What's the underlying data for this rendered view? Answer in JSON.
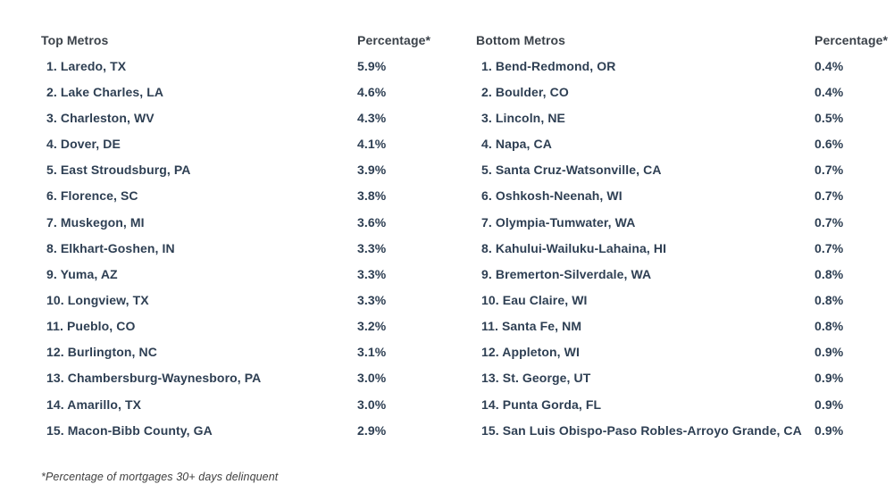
{
  "chart_data": [
    {
      "type": "table",
      "name_header": "Top Metros",
      "value_header": "Percentage*",
      "rows": [
        {
          "rank": "1.",
          "metro": "Laredo, TX",
          "pct": 5.9,
          "display": "5.9%"
        },
        {
          "rank": "2.",
          "metro": "Lake Charles, LA",
          "pct": 4.6,
          "display": "4.6%"
        },
        {
          "rank": "3.",
          "metro": "Charleston, WV",
          "pct": 4.3,
          "display": "4.3%"
        },
        {
          "rank": "4.",
          "metro": "Dover, DE",
          "pct": 4.1,
          "display": "4.1%"
        },
        {
          "rank": "5.",
          "metro": "East Stroudsburg, PA",
          "pct": 3.9,
          "display": "3.9%"
        },
        {
          "rank": "6.",
          "metro": "Florence, SC",
          "pct": 3.8,
          "display": "3.8%"
        },
        {
          "rank": "7.",
          "metro": "Muskegon, MI",
          "pct": 3.6,
          "display": "3.6%"
        },
        {
          "rank": "8.",
          "metro": "Elkhart-Goshen, IN",
          "pct": 3.3,
          "display": "3.3%"
        },
        {
          "rank": "9.",
          "metro": "Yuma, AZ",
          "pct": 3.3,
          "display": "3.3%"
        },
        {
          "rank": "10.",
          "metro": "Longview, TX",
          "pct": 3.3,
          "display": "3.3%"
        },
        {
          "rank": "11.",
          "metro": "Pueblo, CO",
          "pct": 3.2,
          "display": "3.2%"
        },
        {
          "rank": "12.",
          "metro": "Burlington, NC",
          "pct": 3.1,
          "display": "3.1%"
        },
        {
          "rank": "13.",
          "metro": "Chambersburg-Waynesboro, PA",
          "pct": 3.0,
          "display": "3.0%"
        },
        {
          "rank": "14.",
          "metro": "Amarillo, TX",
          "pct": 3.0,
          "display": "3.0%"
        },
        {
          "rank": "15.",
          "metro": "Macon-Bibb County, GA",
          "pct": 2.9,
          "display": "2.9%"
        }
      ]
    },
    {
      "type": "table",
      "name_header": "Bottom Metros",
      "value_header": "Percentage*",
      "rows": [
        {
          "rank": "1.",
          "metro": "Bend-Redmond, OR",
          "pct": 0.4,
          "display": "0.4%"
        },
        {
          "rank": "2.",
          "metro": "Boulder, CO",
          "pct": 0.4,
          "display": "0.4%"
        },
        {
          "rank": "3.",
          "metro": "Lincoln, NE",
          "pct": 0.5,
          "display": "0.5%"
        },
        {
          "rank": "4.",
          "metro": "Napa, CA",
          "pct": 0.6,
          "display": "0.6%"
        },
        {
          "rank": "5.",
          "metro": "Santa Cruz-Watsonville, CA",
          "pct": 0.7,
          "display": "0.7%"
        },
        {
          "rank": "6.",
          "metro": "Oshkosh-Neenah, WI",
          "pct": 0.7,
          "display": "0.7%"
        },
        {
          "rank": "7.",
          "metro": "Olympia-Tumwater, WA",
          "pct": 0.7,
          "display": "0.7%"
        },
        {
          "rank": "8.",
          "metro": "Kahului-Wailuku-Lahaina, HI",
          "pct": 0.7,
          "display": "0.7%"
        },
        {
          "rank": "9.",
          "metro": "Bremerton-Silverdale, WA",
          "pct": 0.8,
          "display": "0.8%"
        },
        {
          "rank": "10.",
          "metro": "Eau Claire, WI",
          "pct": 0.8,
          "display": "0.8%"
        },
        {
          "rank": "11.",
          "metro": "Santa Fe, NM",
          "pct": 0.8,
          "display": "0.8%"
        },
        {
          "rank": "12.",
          "metro": "Appleton, WI",
          "pct": 0.9,
          "display": "0.9%"
        },
        {
          "rank": "13.",
          "metro": "St. George, UT",
          "pct": 0.9,
          "display": "0.9%"
        },
        {
          "rank": "14.",
          "metro": "Punta Gorda, FL",
          "pct": 0.9,
          "display": "0.9%"
        },
        {
          "rank": "15.",
          "metro": "San Luis Obispo-Paso Robles-Arroyo Grande, CA",
          "pct": 0.9,
          "display": "0.9%"
        }
      ]
    }
  ],
  "footnote": "*Percentage of mortgages 30+ days delinquent",
  "colors": {
    "header_text": "#3b424a",
    "row_text": "#2e3f53",
    "footnote_text": "#3f3f3f",
    "background": "#ffffff"
  }
}
